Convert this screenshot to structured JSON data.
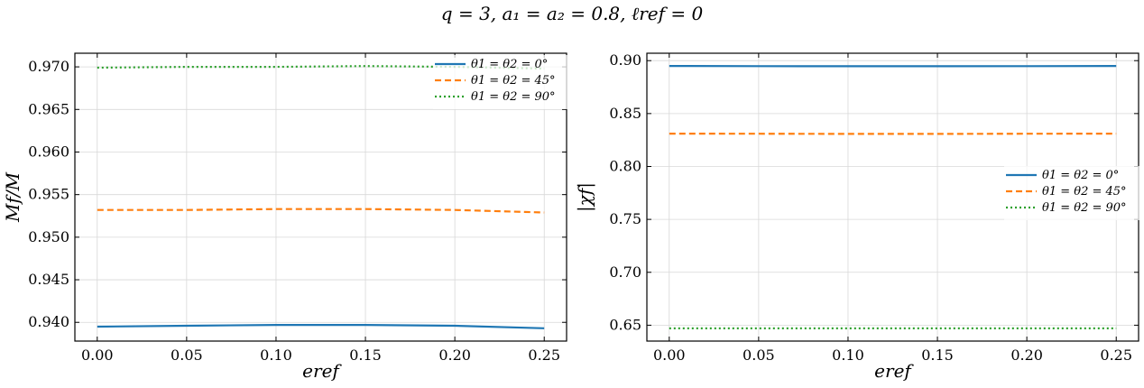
{
  "figure": {
    "title": "q = 3, a₁ = a₂ = 0.8, ℓref = 0"
  },
  "chart_data": [
    {
      "type": "line",
      "xlabel": "eref",
      "ylabel": "Mf/M",
      "xlim": [
        -0.0125,
        0.2625
      ],
      "ylim": [
        0.9378,
        0.9716
      ],
      "xticks": [
        0.0,
        0.05,
        0.1,
        0.15,
        0.2,
        0.25
      ],
      "xtick_labels": [
        "0.00",
        "0.05",
        "0.10",
        "0.15",
        "0.20",
        "0.25"
      ],
      "yticks": [
        0.94,
        0.945,
        0.95,
        0.955,
        0.96,
        0.965,
        0.97
      ],
      "ytick_labels": [
        "0.940",
        "0.945",
        "0.950",
        "0.955",
        "0.960",
        "0.965",
        "0.970"
      ],
      "grid": true,
      "legend": "upper right",
      "x": [
        0.0,
        0.05,
        0.1,
        0.15,
        0.2,
        0.25
      ],
      "series": [
        {
          "name": "θ1 = θ2 = 0°",
          "color": "#1f77b4",
          "dash": "solid",
          "values": [
            0.9395,
            0.9396,
            0.9397,
            0.9397,
            0.9396,
            0.9393
          ]
        },
        {
          "name": "θ1 = θ2 = 45°",
          "color": "#ff7f0e",
          "dash": "dashed",
          "values": [
            0.9532,
            0.9532,
            0.9533,
            0.9533,
            0.9532,
            0.9529
          ]
        },
        {
          "name": "θ1 = θ2 = 90°",
          "color": "#2ca02c",
          "dash": "dotted",
          "values": [
            0.9699,
            0.97,
            0.97,
            0.9701,
            0.97,
            0.9698
          ]
        }
      ]
    },
    {
      "type": "line",
      "xlabel": "eref",
      "ylabel": "|χf|",
      "xlim": [
        -0.0125,
        0.2625
      ],
      "ylim": [
        0.635,
        0.907
      ],
      "xticks": [
        0.0,
        0.05,
        0.1,
        0.15,
        0.2,
        0.25
      ],
      "xtick_labels": [
        "0.00",
        "0.05",
        "0.10",
        "0.15",
        "0.20",
        "0.25"
      ],
      "yticks": [
        0.65,
        0.7,
        0.75,
        0.8,
        0.85,
        0.9
      ],
      "ytick_labels": [
        "0.65",
        "0.70",
        "0.75",
        "0.80",
        "0.85",
        "0.90"
      ],
      "grid": true,
      "legend": "center right",
      "x": [
        0.0,
        0.05,
        0.1,
        0.15,
        0.2,
        0.25
      ],
      "series": [
        {
          "name": "θ1 = θ2 = 0°",
          "color": "#1f77b4",
          "dash": "solid",
          "values": [
            0.895,
            0.8948,
            0.8947,
            0.8947,
            0.8948,
            0.895
          ]
        },
        {
          "name": "θ1 = θ2 = 45°",
          "color": "#ff7f0e",
          "dash": "dashed",
          "values": [
            0.831,
            0.8309,
            0.8308,
            0.8308,
            0.8309,
            0.831
          ]
        },
        {
          "name": "θ1 = θ2 = 90°",
          "color": "#2ca02c",
          "dash": "dotted",
          "values": [
            0.647,
            0.647,
            0.647,
            0.647,
            0.647,
            0.647
          ]
        }
      ]
    }
  ]
}
